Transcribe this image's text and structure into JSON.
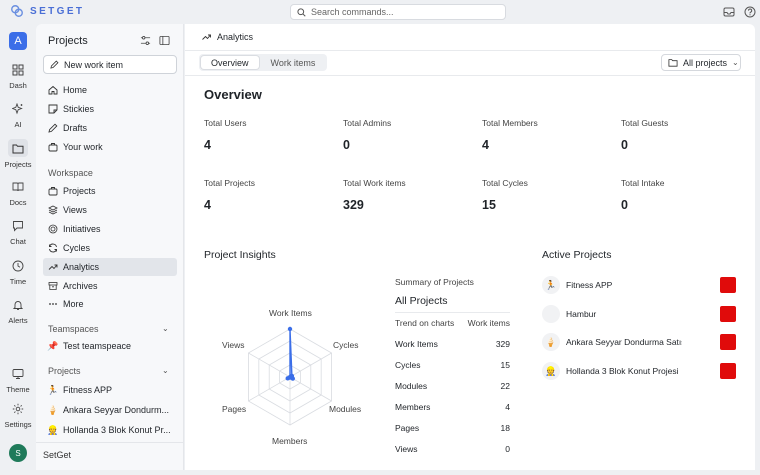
{
  "app": {
    "brand": "SETGET",
    "search_placeholder": "Search commands..."
  },
  "rail": {
    "workspace_initial": "A",
    "items": [
      {
        "label": "Dash",
        "icon": "grid-icon"
      },
      {
        "label": "AI",
        "icon": "sparkle-icon"
      },
      {
        "label": "Projects",
        "icon": "folder-icon"
      },
      {
        "label": "Docs",
        "icon": "book-icon"
      },
      {
        "label": "Chat",
        "icon": "chat-icon"
      },
      {
        "label": "Time",
        "icon": "clock-icon"
      },
      {
        "label": "Alerts",
        "icon": "bell-icon"
      }
    ],
    "bottom": [
      {
        "label": "Theme",
        "icon": "monitor-icon"
      },
      {
        "label": "Settings",
        "icon": "gear-icon"
      }
    ],
    "user_initial": "S"
  },
  "sidebar": {
    "title": "Projects",
    "new_item": "New work item",
    "main_nav": [
      "Home",
      "Stickies",
      "Drafts",
      "Your work"
    ],
    "workspace_label": "Workspace",
    "workspace_nav": [
      "Projects",
      "Views",
      "Initiatives",
      "Cycles",
      "Analytics",
      "Archives",
      "More"
    ],
    "teamspaces_label": "Teamspaces",
    "teamspaces": [
      {
        "emoji": "📌",
        "name": "Test teamspeace"
      }
    ],
    "projects_label": "Projects",
    "projects": [
      {
        "emoji": "🏃",
        "name": "Fitness APP"
      },
      {
        "emoji": "🍦",
        "name": "Ankara Seyyar Dondurm..."
      },
      {
        "emoji": "👷",
        "name": "Hollanda 3 Blok Konut Pr..."
      }
    ],
    "footer": "SetGet"
  },
  "main": {
    "breadcrumb": "Analytics",
    "tabs": [
      "Overview",
      "Work items"
    ],
    "project_filter": "All projects",
    "title": "Overview",
    "stats": [
      {
        "label": "Total Users",
        "value": "4"
      },
      {
        "label": "Total Admins",
        "value": "0"
      },
      {
        "label": "Total Members",
        "value": "4"
      },
      {
        "label": "Total Guests",
        "value": "0"
      },
      {
        "label": "Total Projects",
        "value": "4"
      },
      {
        "label": "Total Work items",
        "value": "329"
      },
      {
        "label": "Total Cycles",
        "value": "15"
      },
      {
        "label": "Total Intake",
        "value": "0"
      }
    ],
    "insights_title": "Project Insights",
    "summary_title": "Summary of Projects",
    "summary_subtitle": "All Projects",
    "summary_head": [
      "Trend on charts",
      "Work items"
    ],
    "summary_rows": [
      {
        "label": "Work Items",
        "value": "329"
      },
      {
        "label": "Cycles",
        "value": "15"
      },
      {
        "label": "Modules",
        "value": "22"
      },
      {
        "label": "Members",
        "value": "4"
      },
      {
        "label": "Pages",
        "value": "18"
      },
      {
        "label": "Views",
        "value": "0"
      }
    ],
    "active_title": "Active Projects",
    "active_projects": [
      {
        "emoji": "🏃",
        "name": "Fitness APP",
        "color": "#e00b0b"
      },
      {
        "emoji": "",
        "name": "Hambur",
        "color": "#e00b0b"
      },
      {
        "emoji": "🍦",
        "name": "Ankara Seyyar Dondurma Satışı",
        "color": "#e00b0b"
      },
      {
        "emoji": "👷",
        "name": "Hollanda 3 Blok Konut Projesi",
        "color": "#e00b0b"
      }
    ]
  },
  "chart_data": {
    "type": "radar",
    "axes": [
      "Work Items",
      "Cycles",
      "Modules",
      "Members",
      "Pages",
      "Views"
    ],
    "values": [
      329,
      15,
      22,
      4,
      18,
      0
    ],
    "max": 329,
    "color": "#3b6ee8"
  }
}
